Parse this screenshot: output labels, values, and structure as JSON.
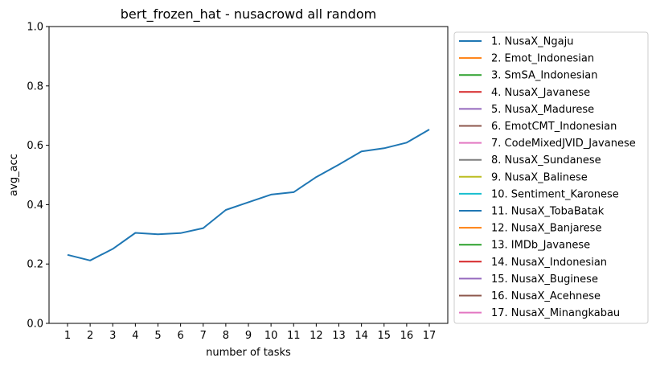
{
  "chart_data": {
    "type": "line",
    "title": "bert_frozen_hat - nusacrowd all random",
    "xlabel": "number of tasks",
    "ylabel": "avg_acc",
    "x": [
      1,
      2,
      3,
      4,
      5,
      6,
      7,
      8,
      9,
      10,
      11,
      12,
      13,
      14,
      15,
      16,
      17
    ],
    "xtick_labels": [
      "1",
      "2",
      "3",
      "4",
      "5",
      "6",
      "7",
      "8",
      "9",
      "10",
      "11",
      "12",
      "13",
      "14",
      "15",
      "16",
      "17"
    ],
    "ylim": [
      0.0,
      1.0
    ],
    "ytick_labels": [
      "0.0",
      "0.2",
      "0.4",
      "0.6",
      "0.8",
      "1.0"
    ],
    "grid": false,
    "legend_placement": "outside right",
    "series": [
      {
        "name": "1. NusaX_Ngaju",
        "color": "#1f77b4",
        "values": [
          0.231,
          0.212,
          0.251,
          0.305,
          0.3,
          0.304,
          0.321,
          0.382,
          0.408,
          0.434,
          0.442,
          0.493,
          0.535,
          0.579,
          0.59,
          0.609,
          0.653
        ]
      }
    ],
    "legend": [
      {
        "label": "1. NusaX_Ngaju",
        "color": "#1f77b4"
      },
      {
        "label": "2. Emot_Indonesian",
        "color": "#ff7f0e"
      },
      {
        "label": "3. SmSA_Indonesian",
        "color": "#2ca02c"
      },
      {
        "label": "4. NusaX_Javanese",
        "color": "#d62728"
      },
      {
        "label": "5. NusaX_Madurese",
        "color": "#9467bd"
      },
      {
        "label": "6. EmotCMT_Indonesian",
        "color": "#8c564b"
      },
      {
        "label": "7. CodeMixedJVID_Javanese",
        "color": "#e377c2"
      },
      {
        "label": "8. NusaX_Sundanese",
        "color": "#7f7f7f"
      },
      {
        "label": "9. NusaX_Balinese",
        "color": "#bcbd22"
      },
      {
        "label": "10. Sentiment_Karonese",
        "color": "#17becf"
      },
      {
        "label": "11. NusaX_TobaBatak",
        "color": "#1f77b4"
      },
      {
        "label": "12. NusaX_Banjarese",
        "color": "#ff7f0e"
      },
      {
        "label": "13. IMDb_Javanese",
        "color": "#2ca02c"
      },
      {
        "label": "14. NusaX_Indonesian",
        "color": "#d62728"
      },
      {
        "label": "15. NusaX_Buginese",
        "color": "#9467bd"
      },
      {
        "label": "16. NusaX_Acehnese",
        "color": "#8c564b"
      },
      {
        "label": "17. NusaX_Minangkabau",
        "color": "#e377c2"
      }
    ]
  }
}
